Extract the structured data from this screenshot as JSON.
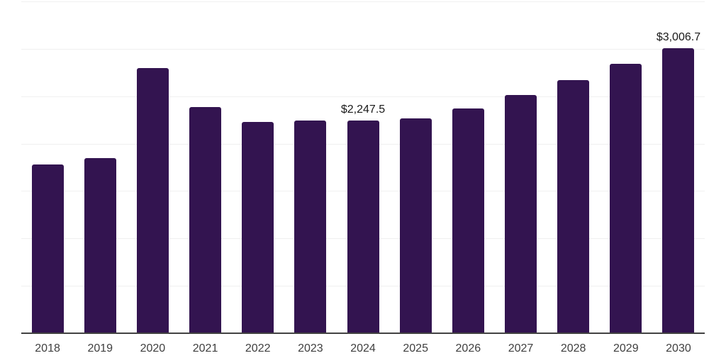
{
  "chart_data": {
    "type": "bar",
    "categories": [
      "2018",
      "2019",
      "2020",
      "2021",
      "2022",
      "2023",
      "2024",
      "2025",
      "2026",
      "2027",
      "2028",
      "2029",
      "2030"
    ],
    "values": [
      1782,
      1850,
      2797,
      2384,
      2226,
      2243,
      2247.5,
      2268,
      2369,
      2510,
      2668,
      2842,
      3006.7
    ],
    "data_labels": [
      {
        "index": 6,
        "text": "$2,247.5"
      },
      {
        "index": 12,
        "text": "$3,006.7"
      }
    ],
    "title": "",
    "xlabel": "",
    "ylabel": "",
    "ylim": [
      0,
      3500
    ],
    "gridline_step": 500,
    "grid": true,
    "legend": false,
    "y_axis_labels_visible": false
  },
  "style": {
    "bar_color": "#331450",
    "gridline_color": "#f0f0f0",
    "axis_line_color": "#424242",
    "tick_label_color": "#3f3f3f",
    "data_label_color": "#191919",
    "background_color": "#ffffff"
  }
}
